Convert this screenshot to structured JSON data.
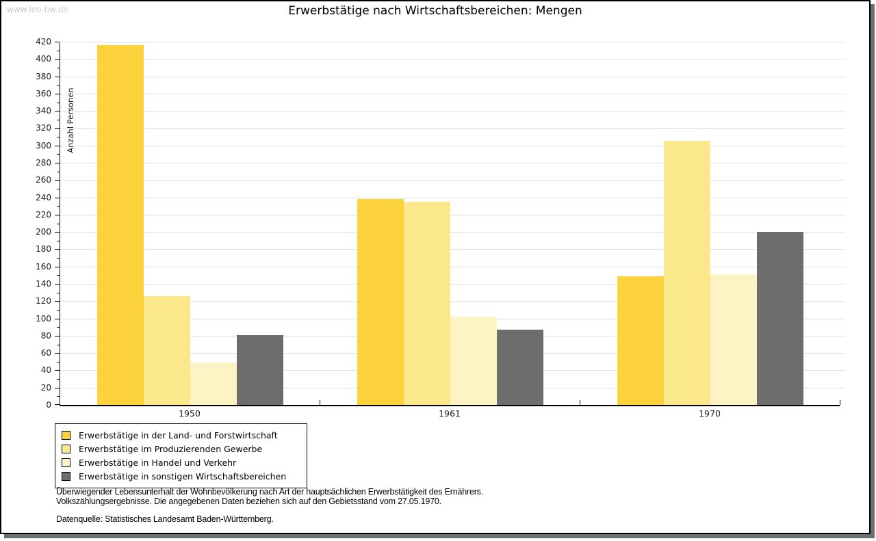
{
  "watermark": "www.leo-bw.de",
  "title": "Erwerbstätige nach Wirtschaftsbereichen: Mengen",
  "chart_data": {
    "type": "bar",
    "title": "Erwerbstätige nach Wirtschaftsbereichen: Mengen",
    "xlabel": "",
    "ylabel": "Anzahl Personen",
    "ylim": [
      0,
      420
    ],
    "ytick_step": 20,
    "ytick_minor_step": 10,
    "grid": true,
    "legend_position": "bottom-left",
    "categories": [
      "1950",
      "1961",
      "1970"
    ],
    "series": [
      {
        "name": "Erwerbstätige in der Land- und Forstwirtschaft",
        "color": "#fcd33c",
        "values": [
          416,
          238,
          149
        ]
      },
      {
        "name": "Erwerbstätige im Produzierenden Gewerbe",
        "color": "#fce88c",
        "values": [
          126,
          235,
          305
        ]
      },
      {
        "name": "Erwerbstätige in Handel und Verkehr",
        "color": "#fdf3c4",
        "values": [
          49,
          102,
          151
        ]
      },
      {
        "name": "Erwerbstätige in sonstigen Wirtschaftsbereichen",
        "color": "#6d6d6d",
        "values": [
          81,
          87,
          200
        ]
      }
    ]
  },
  "footer": {
    "line1": "Überwiegender Lebensunterhalt der Wohnbevölkerung nach Art der hauptsächlichen Erwerbstätigkeit des Ernährers.",
    "line2": "Volkszählungsergebnisse. Die angegebenen Daten beziehen sich auf den Gebietsstand vom 27.05.1970.",
    "source": "Datenquelle: Statistisches Landesamt Baden-Württemberg."
  }
}
